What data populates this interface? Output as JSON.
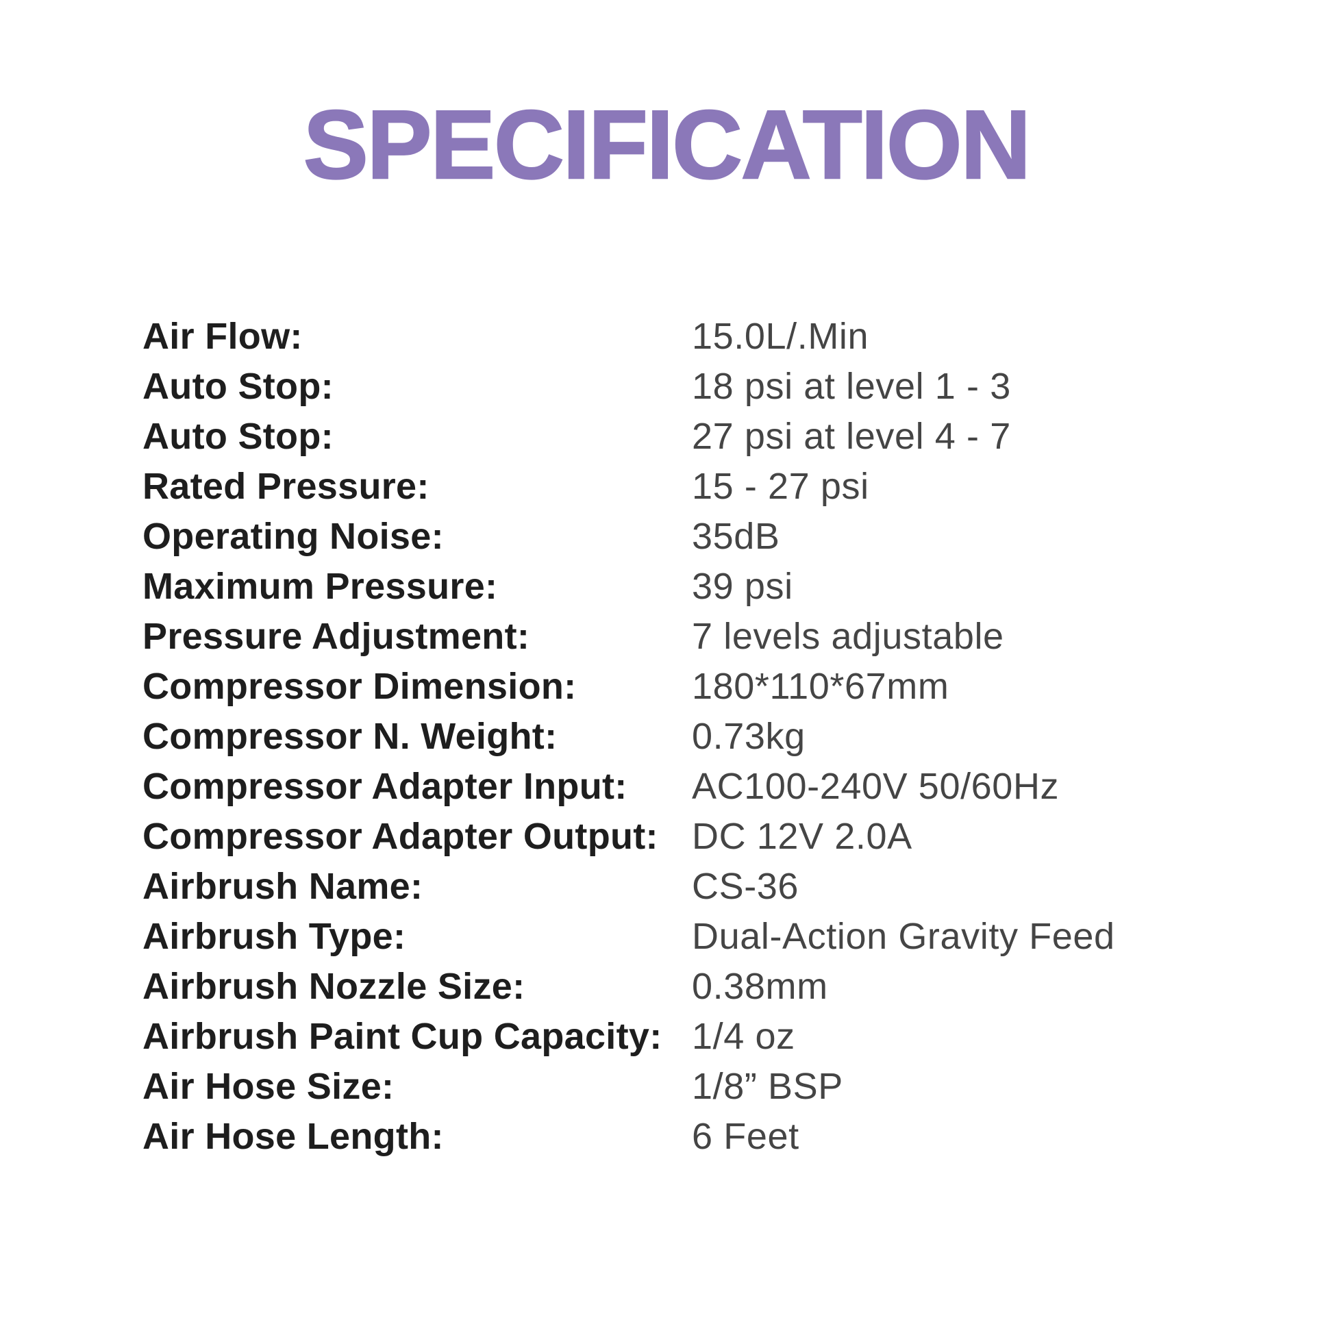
{
  "page": {
    "title": "SPECIFICATION"
  },
  "colors": {
    "accent": "#8b78b9",
    "label_text": "#1e1e1e",
    "value_text": "#454545"
  },
  "spec": {
    "rows": [
      {
        "label": "Air Flow:",
        "value": "15.0L/.Min"
      },
      {
        "label": "Auto Stop:",
        "value": "18 psi at level 1 - 3"
      },
      {
        "label": "Auto Stop:",
        "value": "27 psi at level 4 - 7"
      },
      {
        "label": "Rated Pressure:",
        "value": "15 - 27 psi"
      },
      {
        "label": "Operating Noise:",
        "value": "35dB"
      },
      {
        "label": "Maximum Pressure:",
        "value": "39 psi"
      },
      {
        "label": "Pressure Adjustment:",
        "value": "7 levels adjustable"
      },
      {
        "label": "Compressor Dimension:",
        "value": "180*110*67mm"
      },
      {
        "label": "Compressor N. Weight:",
        "value": "0.73kg"
      },
      {
        "label": "Compressor Adapter Input:",
        "value": "AC100-240V 50/60Hz"
      },
      {
        "label": "Compressor Adapter Output:",
        "value": "DC 12V 2.0A"
      },
      {
        "label": "Airbrush Name:",
        "value": "CS-36"
      },
      {
        "label": "Airbrush Type:",
        "value": "Dual-Action Gravity Feed"
      },
      {
        "label": "Airbrush Nozzle Size:",
        "value": "0.38mm"
      },
      {
        "label": "Airbrush Paint Cup Capacity:",
        "value": "1/4 oz"
      },
      {
        "label": "Air Hose Size:",
        "value": "1/8” BSP"
      },
      {
        "label": "Air Hose Length:",
        "value": "6 Feet"
      }
    ]
  }
}
